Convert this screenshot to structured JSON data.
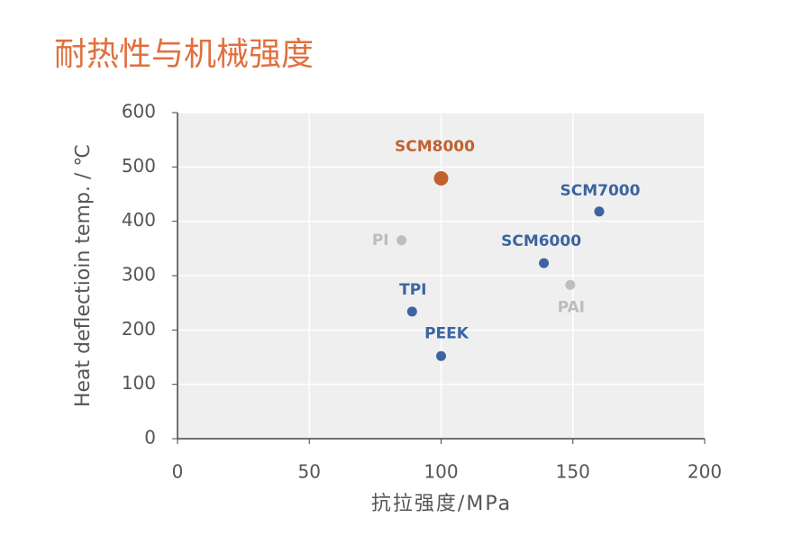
{
  "chart_data": {
    "type": "scatter",
    "title": "耐热性与机械强度",
    "xlabel": "抗拉强度/MPa",
    "ylabel": "Heat deflectioin temp. / ℃",
    "xlim": [
      0,
      200
    ],
    "xticks": [
      0,
      50,
      100,
      150,
      200
    ],
    "ylim": [
      0,
      600
    ],
    "yticks": [
      0,
      100,
      200,
      300,
      400,
      500,
      600
    ],
    "grid": true,
    "series": [
      {
        "name": "SCM8000",
        "color": "#c0622f",
        "x": [
          100
        ],
        "values": [
          479
        ]
      },
      {
        "name": "SCM7000",
        "color": "#3b65a0",
        "x": [
          160
        ],
        "values": [
          418
        ]
      },
      {
        "name": "SCM6000",
        "color": "#3b65a0",
        "x": [
          139
        ],
        "values": [
          323
        ]
      },
      {
        "name": "PI",
        "color": "#bdbdbd",
        "x": [
          85
        ],
        "values": [
          365
        ]
      },
      {
        "name": "PAI",
        "color": "#bdbdbd",
        "x": [
          149
        ],
        "values": [
          283
        ]
      },
      {
        "name": "TPI",
        "color": "#3b65a0",
        "x": [
          89
        ],
        "values": [
          234
        ]
      },
      {
        "name": "PEEK",
        "color": "#3b65a0",
        "x": [
          100
        ],
        "values": [
          152
        ]
      }
    ]
  }
}
